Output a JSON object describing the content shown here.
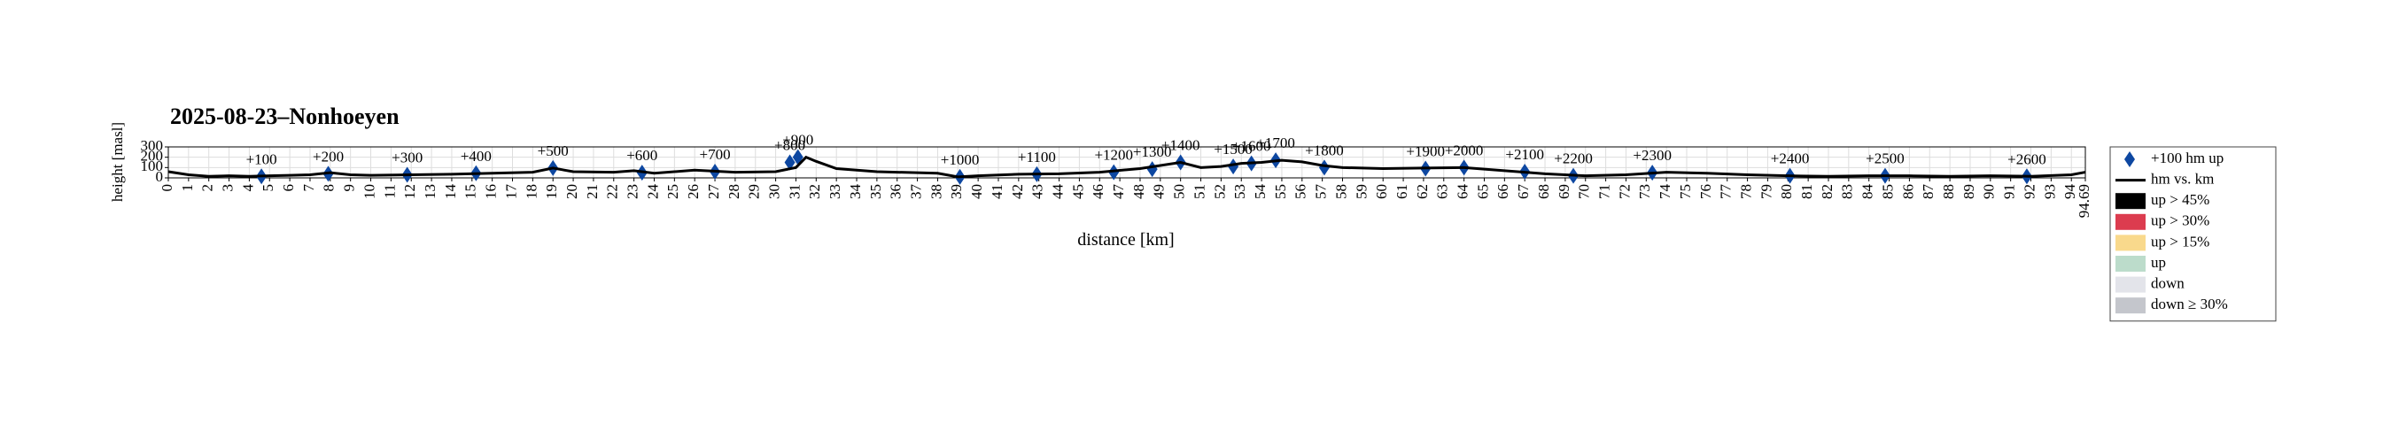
{
  "chart_data": {
    "type": "line",
    "title": "2025-08-23–Nonhoeyen",
    "xlabel": "distance [km]",
    "ylabel": "height [masl]",
    "xlim": [
      0,
      94.69
    ],
    "ylim": [
      0,
      300
    ],
    "yticks": [
      0,
      100,
      200,
      300
    ],
    "xticks": [
      0,
      1,
      2,
      3,
      4,
      5,
      6,
      7,
      8,
      9,
      10,
      11,
      12,
      13,
      14,
      15,
      16,
      17,
      18,
      19,
      20,
      21,
      22,
      23,
      24,
      25,
      26,
      27,
      28,
      29,
      30,
      31,
      32,
      33,
      34,
      35,
      36,
      37,
      38,
      39,
      40,
      41,
      42,
      43,
      44,
      45,
      46,
      47,
      48,
      49,
      50,
      51,
      52,
      53,
      54,
      55,
      56,
      57,
      58,
      59,
      60,
      61,
      62,
      63,
      64,
      65,
      66,
      67,
      68,
      69,
      70,
      71,
      72,
      73,
      74,
      75,
      76,
      77,
      78,
      79,
      80,
      81,
      82,
      83,
      84,
      85,
      86,
      87,
      88,
      89,
      90,
      91,
      92,
      93,
      94,
      94.69
    ],
    "grid": true,
    "series": [
      {
        "name": "+100 hm up",
        "type": "scatter",
        "color": "#0d47a1",
        "x": [
          4.6,
          7.9,
          11.8,
          15.2,
          19.0,
          23.4,
          27.0,
          30.7,
          31.1,
          39.1,
          42.9,
          46.7,
          48.6,
          50.0,
          52.6,
          53.5,
          54.7,
          57.1,
          62.1,
          64.0,
          67.0,
          69.4,
          73.3,
          80.1,
          84.8,
          91.8
        ],
        "values": [
          15,
          40,
          30,
          45,
          95,
          50,
          60,
          150,
          200,
          10,
          35,
          55,
          85,
          150,
          110,
          140,
          170,
          100,
          90,
          100,
          60,
          20,
          50,
          20,
          20,
          15
        ],
        "labels": [
          "+100",
          "+200",
          "+300",
          "+400",
          "+500",
          "+600",
          "+700",
          "+800",
          "+900",
          "+1000",
          "+1100",
          "+1200",
          "+1300",
          "+1400",
          "+1500",
          "+1600",
          "+1700",
          "+1800",
          "+1900",
          "+2000",
          "+2100",
          "+2200",
          "+2300",
          "+2400",
          "+2500",
          "+2600"
        ]
      },
      {
        "name": "hm vs. km",
        "type": "line",
        "color": "#000000",
        "x": [
          0,
          1,
          2,
          3,
          4,
          5,
          6,
          7,
          8,
          9,
          10,
          12,
          14,
          16,
          18,
          19,
          20,
          22,
          23,
          24,
          26,
          28,
          30,
          31,
          31.5,
          32,
          33,
          35,
          38,
          39,
          40,
          42,
          44,
          46,
          48,
          50,
          51,
          52,
          53,
          54,
          55,
          56,
          57,
          58,
          60,
          62,
          64,
          66,
          68,
          70,
          72,
          74,
          76,
          78,
          80,
          82,
          84,
          86,
          88,
          90,
          92,
          94,
          94.69
        ],
        "values": [
          60,
          30,
          15,
          20,
          15,
          20,
          25,
          30,
          50,
          30,
          25,
          30,
          35,
          45,
          55,
          95,
          60,
          55,
          70,
          45,
          75,
          55,
          60,
          100,
          200,
          160,
          90,
          60,
          45,
          10,
          20,
          35,
          40,
          55,
          90,
          150,
          100,
          110,
          140,
          150,
          170,
          155,
          120,
          100,
          90,
          95,
          100,
          70,
          40,
          20,
          30,
          55,
          45,
          30,
          20,
          15,
          20,
          20,
          15,
          20,
          15,
          30,
          55
        ]
      }
    ],
    "gradient_classes": [
      {
        "name": "up > 45%",
        "color": "#000000"
      },
      {
        "name": "up > 30%",
        "color": "#dc3c4f"
      },
      {
        "name": "up > 15%",
        "color": "#f9d98c"
      },
      {
        "name": "up",
        "color": "#bcdccb"
      },
      {
        "name": "down",
        "color": "#e3e4ea"
      },
      {
        "name": "down ≥ 30%",
        "color": "#c4c6cc"
      }
    ]
  }
}
